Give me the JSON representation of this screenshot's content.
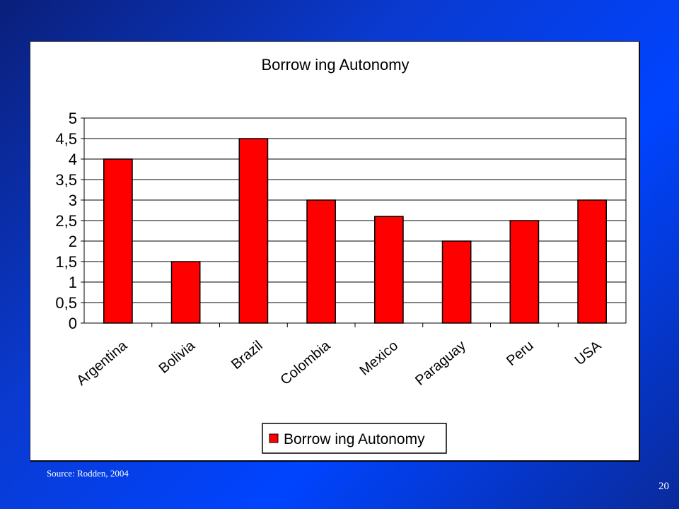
{
  "chart_data": {
    "type": "bar",
    "title": "Borrow ing Autonomy",
    "categories": [
      "Argentina",
      "Bolivia",
      "Brazil",
      "Colombia",
      "Mexico",
      "Paraguay",
      "Peru",
      "USA"
    ],
    "series": [
      {
        "name": "Borrow ing Autonomy",
        "values": [
          4,
          1.5,
          4.5,
          3,
          2.6,
          2,
          2.5,
          3
        ],
        "color": "#ff0000"
      }
    ],
    "ylim": [
      0,
      5
    ],
    "yticks": [
      "0",
      "0,5",
      "1",
      "1,5",
      "2",
      "2,5",
      "3",
      "3,5",
      "4",
      "4,5",
      "5"
    ],
    "grid": true,
    "legend": "bottom"
  },
  "source": "Source: Rodden, 2004",
  "page_number": "20"
}
